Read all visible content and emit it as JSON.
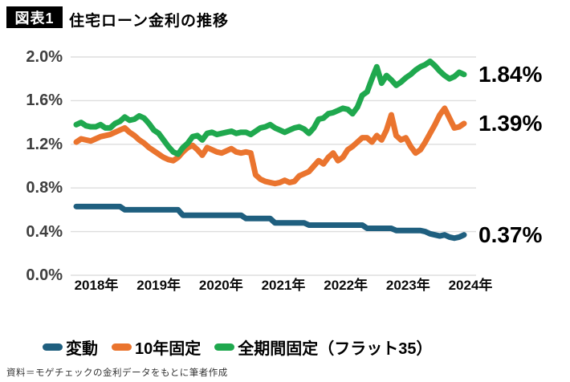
{
  "header": {
    "badge": "図表1",
    "title": "住宅ローン金利の推移"
  },
  "footer": {
    "source": "資料＝モゲチェックの金利データをもとに筆者作成"
  },
  "colors": {
    "variable_line": "#1f5f7f",
    "fixed10_line": "#ea742e",
    "flat35_line": "#1fa84e",
    "grid_line": "#dddddd",
    "axis_text": "#3f3f3f"
  },
  "chart_data": {
    "type": "line",
    "title": "住宅ローン金利の推移",
    "x_unit": "month",
    "x_range": "2018-01 to 2024-09",
    "grid": "horizontal",
    "legend_position": "bottom",
    "ylim": [
      0.0,
      2.0
    ],
    "y_ticks": [
      {
        "label": "2.0%",
        "value": 2.0
      },
      {
        "label": "1.6%",
        "value": 1.6
      },
      {
        "label": "1.2%",
        "value": 1.2
      },
      {
        "label": "0.8%",
        "value": 0.8
      },
      {
        "label": "0.4%",
        "value": 0.4
      },
      {
        "label": "0.0%",
        "value": 0.0
      }
    ],
    "x_tick_labels": [
      "2018年",
      "2019年",
      "2020年",
      "2021年",
      "2022年",
      "2023年",
      "2024年"
    ],
    "series": [
      {
        "name": "変動",
        "color": "#1f5f7f",
        "end_label": "0.37%",
        "values": [
          0.63,
          0.63,
          0.63,
          0.63,
          0.63,
          0.63,
          0.63,
          0.63,
          0.63,
          0.63,
          0.6,
          0.6,
          0.6,
          0.6,
          0.6,
          0.6,
          0.6,
          0.6,
          0.6,
          0.6,
          0.6,
          0.6,
          0.55,
          0.55,
          0.55,
          0.55,
          0.55,
          0.55,
          0.55,
          0.55,
          0.55,
          0.55,
          0.55,
          0.55,
          0.55,
          0.52,
          0.52,
          0.52,
          0.52,
          0.52,
          0.52,
          0.48,
          0.48,
          0.48,
          0.48,
          0.48,
          0.48,
          0.48,
          0.46,
          0.46,
          0.46,
          0.46,
          0.46,
          0.46,
          0.46,
          0.46,
          0.46,
          0.46,
          0.46,
          0.46,
          0.43,
          0.43,
          0.43,
          0.43,
          0.43,
          0.43,
          0.41,
          0.41,
          0.41,
          0.41,
          0.41,
          0.41,
          0.4,
          0.38,
          0.37,
          0.36,
          0.37,
          0.35,
          0.34,
          0.35,
          0.37
        ]
      },
      {
        "name": "10年固定",
        "color": "#ea742e",
        "end_label": "1.39%",
        "values": [
          1.22,
          1.25,
          1.24,
          1.23,
          1.25,
          1.27,
          1.28,
          1.29,
          1.31,
          1.33,
          1.35,
          1.31,
          1.28,
          1.24,
          1.21,
          1.17,
          1.14,
          1.11,
          1.08,
          1.06,
          1.05,
          1.08,
          1.13,
          1.17,
          1.19,
          1.15,
          1.1,
          1.17,
          1.15,
          1.13,
          1.12,
          1.14,
          1.16,
          1.13,
          1.12,
          1.13,
          1.12,
          0.92,
          0.88,
          0.86,
          0.85,
          0.84,
          0.85,
          0.87,
          0.85,
          0.86,
          0.91,
          0.93,
          0.95,
          1.0,
          1.05,
          1.02,
          1.08,
          1.12,
          1.05,
          1.08,
          1.15,
          1.18,
          1.22,
          1.26,
          1.26,
          1.22,
          1.28,
          1.24,
          1.33,
          1.47,
          1.28,
          1.24,
          1.26,
          1.18,
          1.12,
          1.15,
          1.22,
          1.3,
          1.38,
          1.47,
          1.53,
          1.44,
          1.35,
          1.36,
          1.39
        ]
      },
      {
        "name": "全期間固定（フラット35）",
        "color": "#1fa84e",
        "end_label": "1.84%",
        "values": [
          1.38,
          1.4,
          1.37,
          1.36,
          1.36,
          1.38,
          1.35,
          1.35,
          1.39,
          1.41,
          1.45,
          1.42,
          1.43,
          1.46,
          1.44,
          1.39,
          1.33,
          1.3,
          1.24,
          1.18,
          1.13,
          1.11,
          1.17,
          1.21,
          1.27,
          1.28,
          1.24,
          1.3,
          1.31,
          1.29,
          1.3,
          1.31,
          1.32,
          1.3,
          1.31,
          1.31,
          1.29,
          1.32,
          1.35,
          1.36,
          1.38,
          1.35,
          1.33,
          1.31,
          1.33,
          1.35,
          1.36,
          1.34,
          1.3,
          1.35,
          1.43,
          1.44,
          1.48,
          1.49,
          1.51,
          1.53,
          1.52,
          1.48,
          1.54,
          1.65,
          1.68,
          1.8,
          1.91,
          1.76,
          1.83,
          1.79,
          1.74,
          1.77,
          1.81,
          1.84,
          1.88,
          1.91,
          1.93,
          1.96,
          1.92,
          1.87,
          1.83,
          1.8,
          1.82,
          1.86,
          1.84
        ]
      }
    ]
  }
}
